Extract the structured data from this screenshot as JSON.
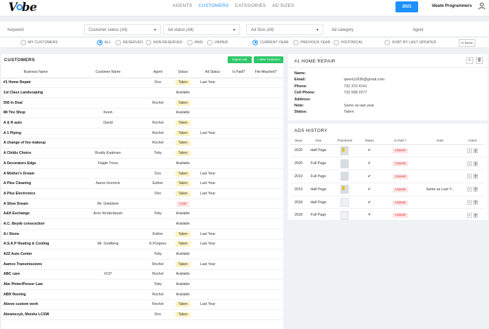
{
  "topbar": {
    "logo": "Vibe",
    "nav": [
      "AGENTS",
      "CUSTOMERS",
      "CATEGORIES",
      "AD SIZES"
    ],
    "active_nav": "CUSTOMERS",
    "year_button": "2021",
    "user_name": "Ideate Programmers"
  },
  "filters": {
    "keyword_placeholder": "Keyword",
    "customer_status": "Customer status (All)",
    "ad_status": "Ad status (All)",
    "ad_size": "Ad Size (All)",
    "ad_category_placeholder": "Ad category",
    "agent_placeholder": "Agent"
  },
  "radios": {
    "my_customers": "MY CUSTOMERS",
    "all": "ALL",
    "reserved": "RESERVED",
    "non_reserved": "NON RESERVED",
    "paid": "PAID",
    "unpaid": "UNPAID",
    "current_year": "CURRENT YEAR",
    "previous_year": "PREVIOUS YEAR",
    "historical": "HISTORICAL",
    "sort_last_updated": "SORT BY LAST UPDATED",
    "reset": "Reset"
  },
  "customers": {
    "title": "CUSTOMERS",
    "export_label": "Export Ads",
    "new_label": "+ New Customer",
    "columns": [
      "Business Name",
      "Customer Name",
      "Agent",
      "Status",
      "Ad Status",
      "Is Paid?",
      "File Attached?"
    ],
    "rows": [
      {
        "business": "#1 Home Repair",
        "customer": "",
        "agent": "Dov",
        "status": "Taken",
        "ad_status": "Last Year"
      },
      {
        "business": "1st Class Landscaping",
        "customer": "",
        "agent": "",
        "status": "Available",
        "ad_status": ""
      },
      {
        "business": "556 In Deal",
        "customer": "",
        "agent": "Rochel",
        "status": "Taken",
        "ad_status": ""
      },
      {
        "business": "88 Tire Shop",
        "customer": "Kevin",
        "agent": "",
        "status": "Available",
        "ad_status": ""
      },
      {
        "business": "A & R auto",
        "customer": "David",
        "agent": "Rochel",
        "status": "Taken",
        "ad_status": ""
      },
      {
        "business": "A 1 Piping",
        "customer": "",
        "agent": "Rochel",
        "status": "Taken",
        "ad_status": "Last Year"
      },
      {
        "business": "A change of foo makeup",
        "customer": "",
        "agent": "Rochel",
        "status": "Taken",
        "ad_status": ""
      },
      {
        "business": "A Childs Choice",
        "customer": "Brudiy Kaalman",
        "agent": "Toby",
        "status": "Taken",
        "ad_status": ""
      },
      {
        "business": "A Decorators Edge",
        "customer": "Faigie Tress",
        "agent": "",
        "status": "Available",
        "ad_status": ""
      },
      {
        "business": "A Mother's Dream",
        "customer": "",
        "agent": "Dov",
        "status": "Taken",
        "ad_status": "Last Year"
      },
      {
        "business": "A Plus Cleaning",
        "customer": "Aaron Hornrick",
        "agent": "Esther",
        "status": "Taken",
        "ad_status": "Last Year"
      },
      {
        "business": "A Plus Electronics",
        "customer": "",
        "agent": "Dov",
        "status": "Taken",
        "ad_status": "Last Year"
      },
      {
        "business": "A Shoe Dream",
        "customer": "Mr. Goldstein",
        "agent": "",
        "status": "Lost",
        "ad_status": ""
      },
      {
        "business": "A&H Exchange",
        "customer": "Aron Kirstenbaum",
        "agent": "Toby",
        "status": "Available",
        "ad_status": ""
      },
      {
        "business": "A.C. Beyde consruction",
        "customer": "",
        "agent": "",
        "status": "Available",
        "ad_status": ""
      },
      {
        "business": "A.I Stone",
        "customer": "",
        "agent": "Esther",
        "status": "Taken",
        "ad_status": "Last Year"
      },
      {
        "business": "A.S.A.P Heating & Cooling",
        "customer": "Mr. Goldberg",
        "agent": "E.Porgess",
        "status": "Taken",
        "ad_status": "Last Year"
      },
      {
        "business": "A2Z Auto Center",
        "customer": "",
        "agent": "Toby",
        "status": "Available",
        "ad_status": ""
      },
      {
        "business": "Aamco Transmissions",
        "customer": "",
        "agent": "Rochel",
        "status": "Taken",
        "ad_status": "Last Year"
      },
      {
        "business": "ABC care",
        "customer": "#137",
        "agent": "Rochel",
        "status": "Available",
        "ad_status": ""
      },
      {
        "business": "Abe Pinter/Penzer Law",
        "customer": "",
        "agent": "Toby",
        "status": "Available",
        "ad_status": ""
      },
      {
        "business": "ABH flooring",
        "customer": "",
        "agent": "Rochel",
        "status": "Available",
        "ad_status": ""
      },
      {
        "business": "Above custom work",
        "customer": "",
        "agent": "Rochel",
        "status": "Taken",
        "ad_status": "Last Year"
      },
      {
        "business": "Abramczyk, Moishe LCSW",
        "customer": "",
        "agent": "Dov",
        "status": "Taken",
        "ad_status": ""
      }
    ]
  },
  "detail": {
    "title": "#1 HOME REPAIR",
    "fields": [
      {
        "label": "Name:",
        "value": ""
      },
      {
        "label": "Email:",
        "value": "qwerty1836@gmail.com"
      },
      {
        "label": "Phone:",
        "value": "732 370 4141"
      },
      {
        "label": "Cell Phone:",
        "value": "732 598 2277"
      },
      {
        "label": "Address:",
        "value": ""
      },
      {
        "label": "Note:",
        "value": "Same as last year"
      },
      {
        "label": "Status:",
        "value": "Taken"
      }
    ]
  },
  "ads_history": {
    "title": "ADS HISTORY",
    "columns": [
      "Issue",
      "Size",
      "Thumbnail",
      "Status",
      "Is Paid ?",
      "Note",
      "Action"
    ],
    "rows": [
      {
        "issue": "2020",
        "size": "Half Page",
        "thumb": "y",
        "status": "✔",
        "paid": "Unpaid",
        "note": ""
      },
      {
        "issue": "2020",
        "size": "Full Page",
        "thumb": "g",
        "status": "✔",
        "paid": "Unpaid",
        "note": ""
      },
      {
        "issue": "2019",
        "size": "Full Page",
        "thumb": "g",
        "status": "✔",
        "paid": "Unpaid",
        "note": ""
      },
      {
        "issue": "2019",
        "size": "Half Page",
        "thumb": "y",
        "status": "✔",
        "paid": "Unpaid",
        "note": "Same as Last Y..."
      },
      {
        "issue": "2018",
        "size": "Half Page",
        "thumb": "e",
        "status": "✔",
        "paid": "Unpaid",
        "note": ""
      },
      {
        "issue": "2018",
        "size": "Full Page",
        "thumb": "e",
        "status": "✕",
        "paid": "Unpaid",
        "note": ""
      }
    ]
  }
}
